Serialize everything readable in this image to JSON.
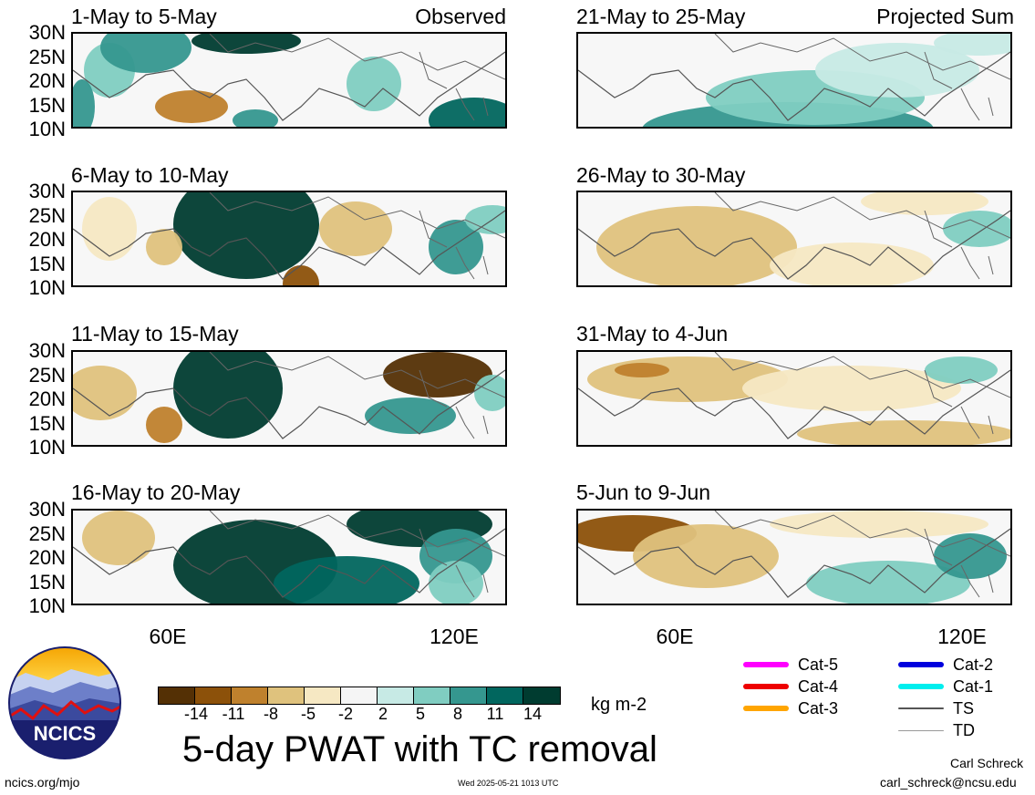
{
  "panels": [
    {
      "title": "1-May to 5-May",
      "corner": "Observed"
    },
    {
      "title": "21-May to 25-May",
      "corner": "Projected Sum"
    },
    {
      "title": "6-May to 10-May",
      "corner": ""
    },
    {
      "title": "26-May to 30-May",
      "corner": ""
    },
    {
      "title": "11-May to 15-May",
      "corner": ""
    },
    {
      "title": "31-May to 4-Jun",
      "corner": ""
    },
    {
      "title": "16-May to 20-May",
      "corner": ""
    },
    {
      "title": "5-Jun to 9-Jun",
      "corner": ""
    }
  ],
  "axes": {
    "lat_labels": [
      "30N",
      "25N",
      "20N",
      "15N",
      "10N"
    ],
    "lon_labels": [
      "60E",
      "120E"
    ]
  },
  "colorbar": {
    "colors": [
      "#543005",
      "#8c510a",
      "#bf812d",
      "#dfc27d",
      "#f6e8c3",
      "#f5f5f5",
      "#c7eae5",
      "#80cdc1",
      "#35978f",
      "#01665e",
      "#003c30"
    ],
    "tick_labels": [
      "-14",
      "-11",
      "-8",
      "-5",
      "-2",
      "2",
      "5",
      "8",
      "11",
      "14"
    ],
    "units": "kg m-2"
  },
  "title": "5-day PWAT with TC removal",
  "legend": [
    {
      "label": "Cat-5",
      "color": "#ff00ff"
    },
    {
      "label": "Cat-4",
      "color": "#ee0000"
    },
    {
      "label": "Cat-3",
      "color": "#ffa500"
    },
    {
      "label": "Cat-2",
      "color": "#0000dd"
    },
    {
      "label": "Cat-1",
      "color": "#00eeee"
    },
    {
      "label": "TS",
      "color": "#555555"
    },
    {
      "label": "TD",
      "color": "#999999"
    }
  ],
  "logo": {
    "text": "NCICS"
  },
  "footer": {
    "url": "ncics.org/mjo",
    "timestamp": "Wed 2025-05-21 1013 UTC",
    "author": "Carl Schreck",
    "email": "carl_schreck@ncsu.edu"
  }
}
